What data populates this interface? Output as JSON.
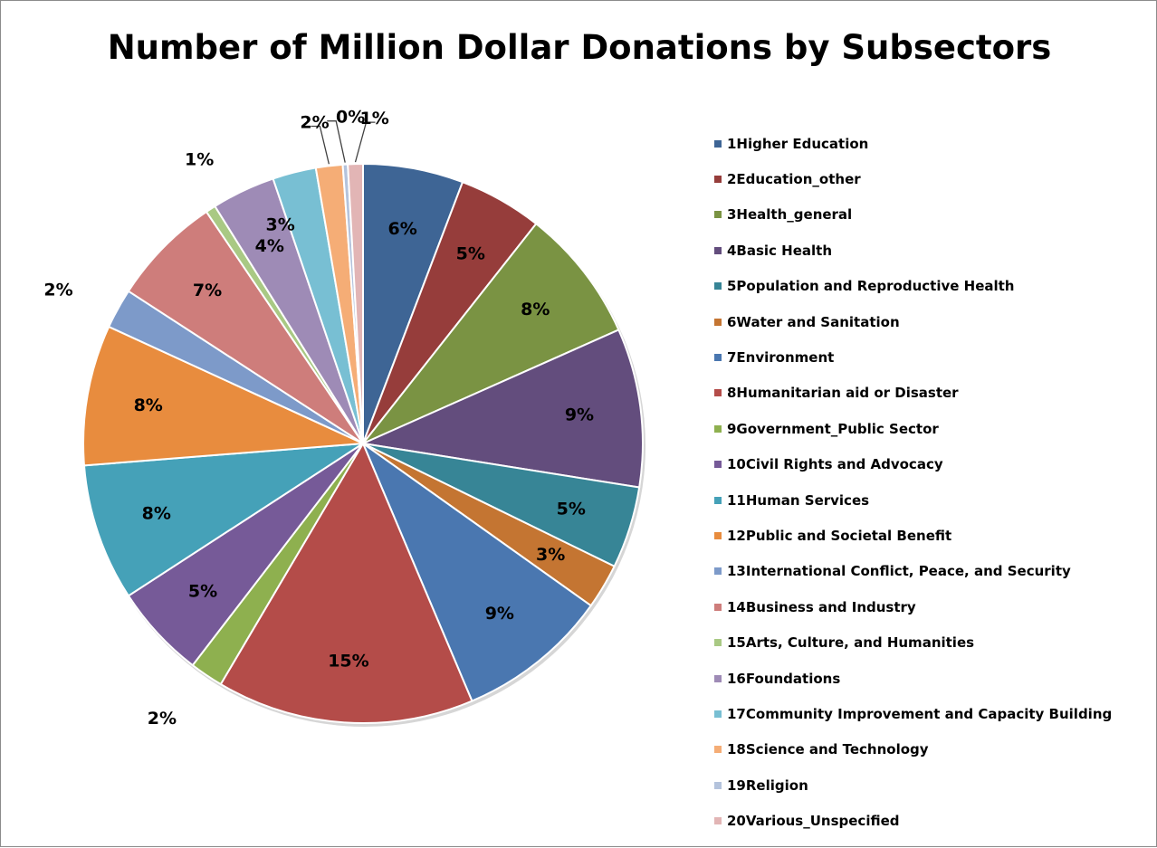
{
  "chart_data": {
    "type": "pie",
    "title": "Number of Million Dollar Donations by Subsectors",
    "legend_position": "right",
    "slices": [
      {
        "name": "1Higher Education",
        "value": 6.0,
        "label": "6%",
        "color": "#3e6595"
      },
      {
        "name": "2Education_other",
        "value": 5.0,
        "label": "5%",
        "color": "#963d3b"
      },
      {
        "name": "3Health_general",
        "value": 8.0,
        "label": "8%",
        "color": "#7a9343"
      },
      {
        "name": "4Basic Health",
        "value": 9.5,
        "label": "9%",
        "color": "#634d7d"
      },
      {
        "name": "5Population and Reproductive Health",
        "value": 4.9,
        "label": "5%",
        "color": "#378596"
      },
      {
        "name": "6Water and Sanitation",
        "value": 2.7,
        "label": "3%",
        "color": "#c47532"
      },
      {
        "name": "7Environment",
        "value": 9.1,
        "label": "9%",
        "color": "#4a77b0"
      },
      {
        "name": "8Humanitarian aid or Disaster",
        "value": 15.4,
        "label": "15%",
        "color": "#b44c49"
      },
      {
        "name": "9Government_Public Sector",
        "value": 2.0,
        "label": "2%",
        "color": "#8eb04f"
      },
      {
        "name": "10Civil Rights and Advocacy",
        "value": 5.6,
        "label": "5%",
        "color": "#765a98"
      },
      {
        "name": "11Human Services",
        "value": 8.2,
        "label": "8%",
        "color": "#45a1b8"
      },
      {
        "name": "12Public and Societal Benefit",
        "value": 8.4,
        "label": "8%",
        "color": "#e88c3e"
      },
      {
        "name": "13International Conflict, Peace, and Security",
        "value": 2.4,
        "label": "2%",
        "color": "#7d9ac9"
      },
      {
        "name": "14Business and Industry",
        "value": 6.6,
        "label": "7%",
        "color": "#ce7d7b"
      },
      {
        "name": "15Arts, Culture, and Humanities",
        "value": 0.6,
        "label": "1%",
        "color": "#a9c984"
      },
      {
        "name": "16Foundations",
        "value": 3.8,
        "label": "4%",
        "color": "#9e8bb6"
      },
      {
        "name": "17Community Improvement and Capacity Building",
        "value": 2.6,
        "label": "3%",
        "color": "#78bfd3"
      },
      {
        "name": "18Science and Technology",
        "value": 1.6,
        "label": "2%",
        "color": "#f5ad76"
      },
      {
        "name": "19Religion",
        "value": 0.3,
        "label": "0%",
        "color": "#b4c3dc"
      },
      {
        "name": "20Various_Unspecified",
        "value": 0.9,
        "label": "1%",
        "color": "#e2b5b5"
      }
    ]
  }
}
